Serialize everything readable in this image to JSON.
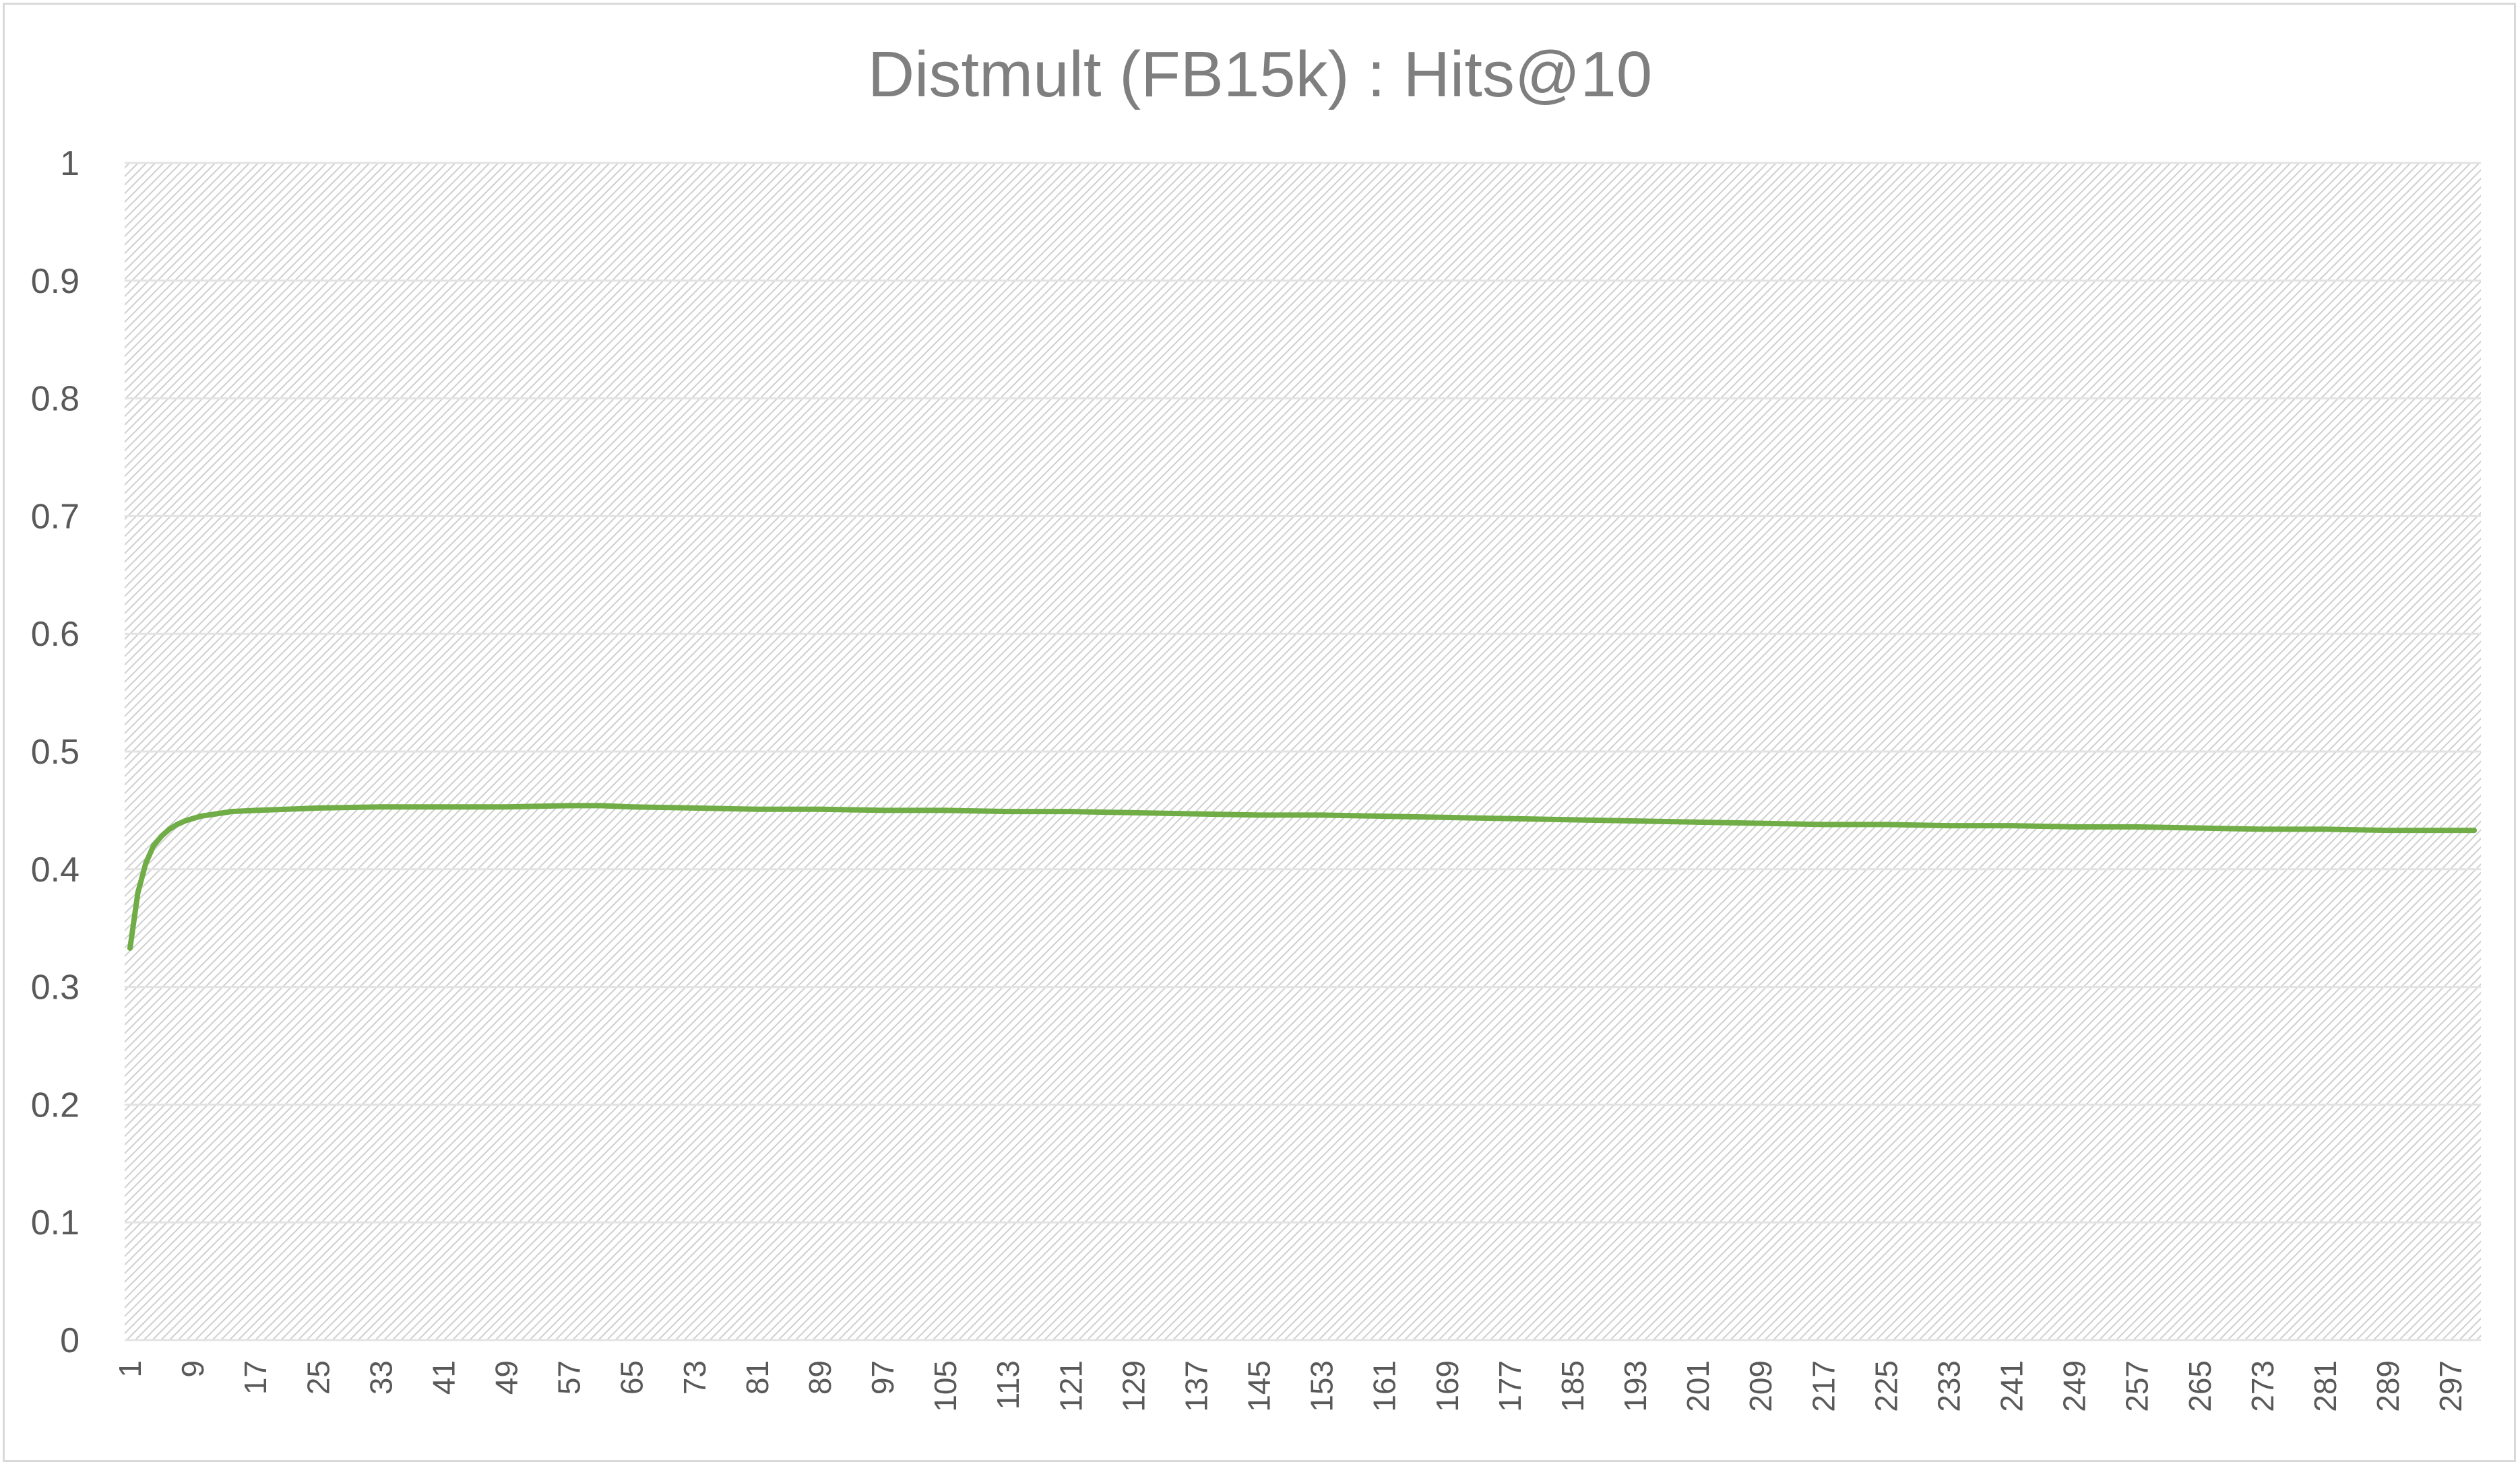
{
  "chart_data": {
    "type": "line",
    "title": "Distmult (FB15k) : Hits@10",
    "xlabel": "",
    "ylabel": "",
    "ylim": [
      0,
      1
    ],
    "yticks": [
      "0",
      "0.1",
      "0.2",
      "0.3",
      "0.4",
      "0.5",
      "0.6",
      "0.7",
      "0.8",
      "0.9",
      "1"
    ],
    "x_range": [
      1,
      300
    ],
    "xticks": [
      "1",
      "9",
      "17",
      "25",
      "33",
      "41",
      "49",
      "57",
      "65",
      "73",
      "81",
      "89",
      "97",
      "105",
      "113",
      "121",
      "129",
      "137",
      "145",
      "153",
      "161",
      "169",
      "177",
      "185",
      "193",
      "201",
      "209",
      "217",
      "225",
      "233",
      "241",
      "249",
      "257",
      "265",
      "273",
      "281",
      "289",
      "297"
    ],
    "grid": true,
    "legend": "none",
    "series": [
      {
        "color": "#70ad47",
        "x": [
          1,
          2,
          3,
          4,
          5,
          6,
          7,
          8,
          9,
          10,
          12,
          14,
          17,
          21,
          25,
          33,
          41,
          49,
          57,
          61,
          65,
          73,
          81,
          89,
          97,
          105,
          113,
          121,
          129,
          137,
          145,
          153,
          161,
          169,
          177,
          185,
          193,
          201,
          209,
          217,
          225,
          233,
          241,
          249,
          257,
          265,
          273,
          281,
          289,
          297,
          300
        ],
        "y": [
          0.333,
          0.38,
          0.405,
          0.42,
          0.428,
          0.434,
          0.438,
          0.441,
          0.443,
          0.445,
          0.447,
          0.449,
          0.45,
          0.451,
          0.452,
          0.453,
          0.453,
          0.453,
          0.454,
          0.454,
          0.453,
          0.452,
          0.451,
          0.451,
          0.45,
          0.45,
          0.449,
          0.449,
          0.448,
          0.447,
          0.446,
          0.446,
          0.445,
          0.444,
          0.443,
          0.442,
          0.441,
          0.44,
          0.439,
          0.438,
          0.438,
          0.437,
          0.437,
          0.436,
          0.436,
          0.435,
          0.434,
          0.434,
          0.433,
          0.433,
          0.433
        ]
      }
    ]
  }
}
